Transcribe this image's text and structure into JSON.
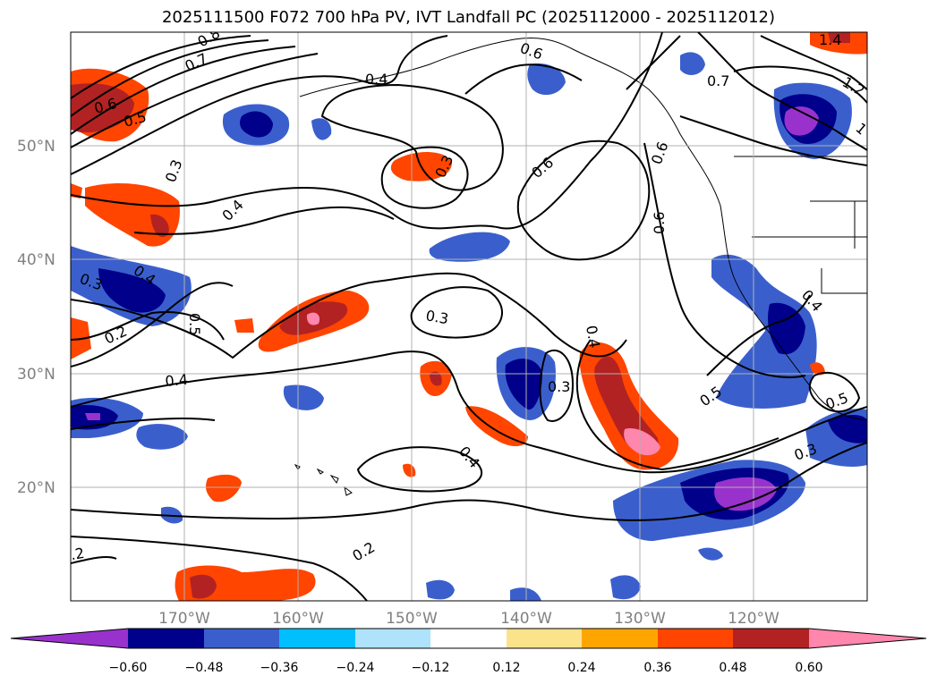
{
  "title": "2025111500 F072 700 hPa PV, IVT Landfall PC (2025112000 - 2025112012)",
  "map": {
    "lat_labels": [
      {
        "lat": 50,
        "label": "50°N"
      },
      {
        "lat": 40,
        "label": "40°N"
      },
      {
        "lat": 30,
        "label": "30°N"
      },
      {
        "lat": 20,
        "label": "20°N"
      }
    ],
    "lon_labels": [
      {
        "lon": -170,
        "label": "170°W"
      },
      {
        "lon": -160,
        "label": "160°W"
      },
      {
        "lon": -150,
        "label": "150°W"
      },
      {
        "lon": -140,
        "label": "140°W"
      },
      {
        "lon": -130,
        "label": "130°W"
      },
      {
        "lon": -120,
        "label": "120°W"
      }
    ],
    "contour_labels": [
      "0.8",
      "0.7",
      "0.6",
      "0.5",
      "0.4",
      "0.3",
      "0.4",
      "0.3",
      "0.6",
      "0.6",
      "0.7",
      "0.6",
      "1.4",
      "1.2",
      "1",
      "0.6",
      "0.4",
      "0.3",
      "0.2",
      "0.5",
      "0.4",
      "0.3",
      "0.4",
      "0.3",
      "0.4",
      "0.2",
      "0.2",
      "0.5",
      "0.5",
      "0.3",
      "0.4"
    ]
  },
  "colorbar": {
    "colors": [
      "#9932cc",
      "#00008b",
      "#3a5fcd",
      "#00bfff",
      "#aee3fb",
      "#ffffff",
      "#fbe38c",
      "#ffa500",
      "#ff4500",
      "#b22222",
      "#ff86ad"
    ],
    "tick_labels": [
      "−0.60",
      "−0.48",
      "−0.36",
      "−0.24",
      "−0.12",
      "0.12",
      "0.24",
      "0.36",
      "0.48",
      "0.60"
    ]
  }
}
